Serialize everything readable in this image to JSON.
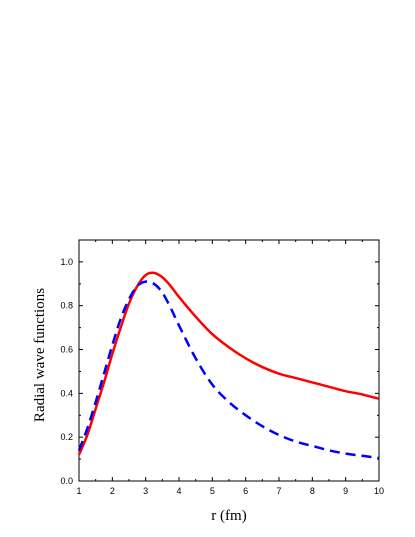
{
  "chart_data": {
    "type": "line",
    "title": "",
    "xlabel": "r (fm)",
    "ylabel": "Radial wave functions",
    "xlim": [
      1,
      10
    ],
    "ylim": [
      0,
      1.1
    ],
    "xticks": [
      1,
      2,
      3,
      4,
      5,
      6,
      7,
      8,
      9,
      10
    ],
    "xtick_labels": [
      "1",
      "2",
      "3",
      "4",
      "5",
      "6",
      "7",
      "8",
      "9",
      "10"
    ],
    "yticks": [
      0,
      0.2,
      0.4,
      0.6,
      0.8,
      1.0
    ],
    "ytick_labels": [
      "0.0",
      "0.2",
      "0.4",
      "0.6",
      "0.8",
      "1.0"
    ],
    "grid": false,
    "legend": "none",
    "series": [
      {
        "style": "solid",
        "color": "#ff0000",
        "x": [
          1.0,
          1.25,
          1.5,
          1.75,
          2.0,
          2.25,
          2.5,
          2.75,
          3.0,
          3.25,
          3.5,
          3.75,
          4.0,
          4.5,
          5.0,
          5.5,
          6.0,
          6.5,
          7.0,
          7.5,
          8.0,
          8.5,
          9.0,
          9.5,
          10.0
        ],
        "y": [
          0.12,
          0.21,
          0.33,
          0.45,
          0.58,
          0.7,
          0.81,
          0.89,
          0.94,
          0.95,
          0.93,
          0.89,
          0.84,
          0.75,
          0.67,
          0.61,
          0.56,
          0.52,
          0.49,
          0.47,
          0.45,
          0.43,
          0.41,
          0.395,
          0.375
        ]
      },
      {
        "style": "dashed",
        "color": "#0000ff",
        "x": [
          1.0,
          1.25,
          1.5,
          1.75,
          2.0,
          2.25,
          2.5,
          2.75,
          3.0,
          3.25,
          3.5,
          3.75,
          4.0,
          4.5,
          5.0,
          5.5,
          6.0,
          6.5,
          7.0,
          7.5,
          8.0,
          8.5,
          9.0,
          9.5,
          10.0
        ],
        "y": [
          0.14,
          0.24,
          0.36,
          0.49,
          0.62,
          0.74,
          0.83,
          0.89,
          0.91,
          0.9,
          0.86,
          0.79,
          0.71,
          0.56,
          0.44,
          0.36,
          0.3,
          0.25,
          0.21,
          0.18,
          0.16,
          0.14,
          0.125,
          0.115,
          0.105
        ]
      }
    ]
  }
}
